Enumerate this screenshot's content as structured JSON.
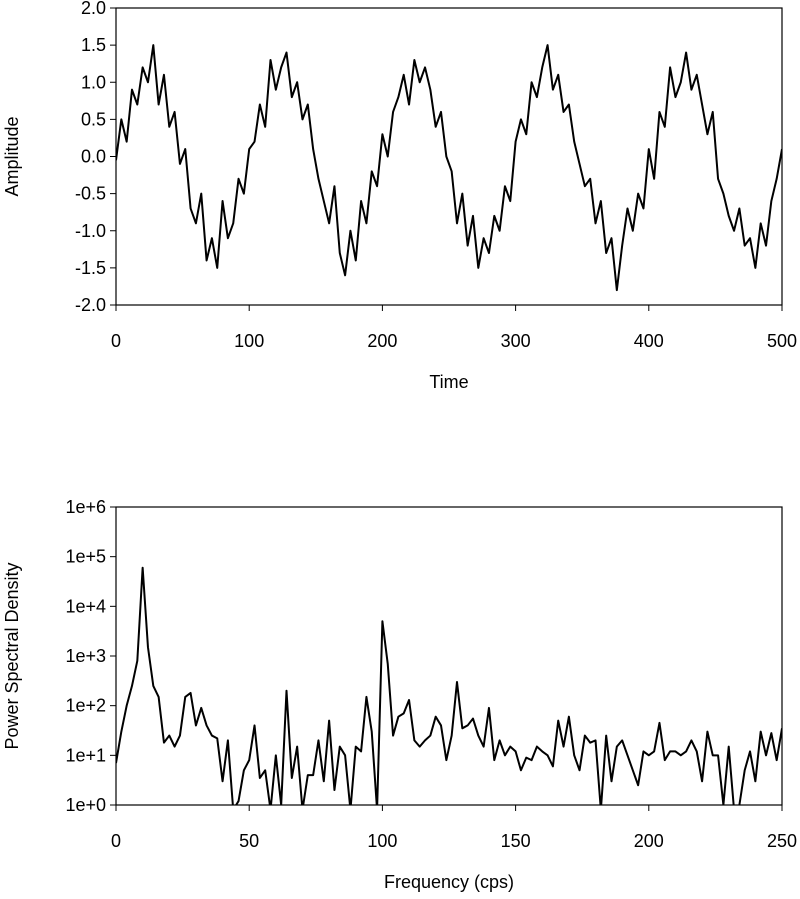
{
  "chart_data": [
    {
      "type": "line",
      "x_label": "Time",
      "y_label": "Amplitude",
      "color": "#000000",
      "xlim": [
        0,
        500
      ],
      "xticks": [
        0,
        100,
        200,
        300,
        400,
        500
      ],
      "ylim": [
        -2,
        2
      ],
      "yticks": [
        {
          "value": -2,
          "label": "-2.0"
        },
        -1.5,
        {
          "value": -1,
          "label": "-1.0"
        },
        -0.5,
        {
          "value": 0,
          "label": "0.0"
        },
        0.5,
        {
          "value": 1,
          "label": "1.0"
        },
        1.5,
        {
          "value": 2,
          "label": "2.0"
        }
      ],
      "x": [
        0,
        4,
        8,
        12,
        16,
        20,
        24,
        28,
        32,
        36,
        40,
        44,
        48,
        52,
        56,
        60,
        64,
        68,
        72,
        76,
        80,
        84,
        88,
        92,
        96,
        100,
        104,
        108,
        112,
        116,
        120,
        124,
        128,
        132,
        136,
        140,
        144,
        148,
        152,
        156,
        160,
        164,
        168,
        172,
        176,
        180,
        184,
        188,
        192,
        196,
        200,
        204,
        208,
        212,
        216,
        220,
        224,
        228,
        232,
        236,
        240,
        244,
        248,
        252,
        256,
        260,
        264,
        268,
        272,
        276,
        280,
        284,
        288,
        292,
        296,
        300,
        304,
        308,
        312,
        316,
        320,
        324,
        328,
        332,
        336,
        340,
        344,
        348,
        352,
        356,
        360,
        364,
        368,
        372,
        376,
        380,
        384,
        388,
        392,
        396,
        400,
        404,
        408,
        412,
        416,
        420,
        424,
        428,
        432,
        436,
        440,
        444,
        448,
        452,
        456,
        460,
        464,
        468,
        472,
        476,
        480,
        484,
        488,
        492,
        496,
        500
      ],
      "values": [
        -0.05,
        0.5,
        0.2,
        0.9,
        0.7,
        1.2,
        1.0,
        1.5,
        0.7,
        1.1,
        0.4,
        0.6,
        -0.1,
        0.1,
        -0.7,
        -0.9,
        -0.5,
        -1.4,
        -1.1,
        -1.5,
        -0.6,
        -1.1,
        -0.9,
        -0.3,
        -0.5,
        0.1,
        0.2,
        0.7,
        0.4,
        1.3,
        0.9,
        1.2,
        1.4,
        0.8,
        1.0,
        0.5,
        0.7,
        0.1,
        -0.3,
        -0.6,
        -0.9,
        -0.4,
        -1.3,
        -1.6,
        -1.0,
        -1.4,
        -0.6,
        -0.9,
        -0.2,
        -0.4,
        0.3,
        0.0,
        0.6,
        0.8,
        1.1,
        0.7,
        1.3,
        1.0,
        1.2,
        0.9,
        0.4,
        0.6,
        0.0,
        -0.2,
        -0.9,
        -0.5,
        -1.2,
        -0.8,
        -1.5,
        -1.1,
        -1.3,
        -0.8,
        -1.0,
        -0.4,
        -0.6,
        0.2,
        0.5,
        0.3,
        1.0,
        0.8,
        1.2,
        1.5,
        0.9,
        1.1,
        0.6,
        0.7,
        0.2,
        -0.1,
        -0.4,
        -0.3,
        -0.9,
        -0.6,
        -1.3,
        -1.1,
        -1.8,
        -1.2,
        -0.7,
        -1.0,
        -0.5,
        -0.7,
        0.1,
        -0.3,
        0.6,
        0.4,
        1.2,
        0.8,
        1.0,
        1.4,
        0.9,
        1.1,
        0.7,
        0.3,
        0.6,
        -0.3,
        -0.5,
        -0.8,
        -1.0,
        -0.7,
        -1.2,
        -1.1,
        -1.5,
        -0.9,
        -1.2,
        -0.6,
        -0.3,
        0.1
      ]
    },
    {
      "type": "line",
      "x_label": "Frequency (cps)",
      "y_label": "Power Spectral Density",
      "color": "#000000",
      "log_scale": true,
      "xlim": [
        0,
        250
      ],
      "xticks": [
        0,
        50,
        100,
        150,
        200,
        250
      ],
      "ylim": [
        1,
        1000000
      ],
      "yticks": [
        {
          "value": 1,
          "label": "1e+0"
        },
        {
          "value": 10,
          "label": "1e+1"
        },
        {
          "value": 100,
          "label": "1e+2"
        },
        {
          "value": 1000,
          "label": "1e+3"
        },
        {
          "value": 10000,
          "label": "1e+4"
        },
        {
          "value": 100000,
          "label": "1e+5"
        },
        {
          "value": 1000000,
          "label": "1e+6"
        }
      ],
      "x": [
        0,
        2,
        4,
        6,
        8,
        10,
        12,
        14,
        16,
        18,
        20,
        22,
        24,
        26,
        28,
        30,
        32,
        34,
        36,
        38,
        40,
        42,
        44,
        46,
        48,
        50,
        52,
        54,
        56,
        58,
        60,
        62,
        64,
        66,
        68,
        70,
        72,
        74,
        76,
        78,
        80,
        82,
        84,
        86,
        88,
        90,
        92,
        94,
        96,
        98,
        100,
        102,
        104,
        106,
        108,
        110,
        112,
        114,
        116,
        118,
        120,
        122,
        124,
        126,
        128,
        130,
        132,
        134,
        136,
        138,
        140,
        142,
        144,
        146,
        148,
        150,
        152,
        154,
        156,
        158,
        160,
        162,
        164,
        166,
        168,
        170,
        172,
        174,
        176,
        178,
        180,
        182,
        184,
        186,
        188,
        190,
        192,
        194,
        196,
        198,
        200,
        202,
        204,
        206,
        208,
        210,
        212,
        214,
        216,
        218,
        220,
        222,
        224,
        226,
        228,
        230,
        232,
        234,
        236,
        238,
        240,
        242,
        244,
        246,
        248,
        250
      ],
      "values": [
        7,
        30,
        100,
        250,
        800,
        60000,
        1500,
        250,
        150,
        18,
        25,
        15,
        25,
        150,
        180,
        40,
        90,
        40,
        25,
        22,
        3,
        20,
        0.8,
        1.2,
        5,
        8,
        40,
        3.5,
        5,
        0.8,
        10,
        1,
        200,
        3.5,
        15,
        0.8,
        4,
        4,
        20,
        3,
        50,
        2,
        15,
        10,
        0.8,
        15,
        12,
        150,
        30,
        0.8,
        5000,
        700,
        25,
        60,
        70,
        130,
        20,
        15,
        20,
        25,
        60,
        40,
        8,
        25,
        300,
        35,
        40,
        55,
        25,
        15,
        90,
        8,
        20,
        10,
        15,
        12,
        5,
        9,
        8,
        15,
        12,
        10,
        6,
        50,
        15,
        60,
        10,
        5,
        25,
        18,
        20,
        0.8,
        25,
        3,
        15,
        20,
        10,
        5,
        2.5,
        12,
        10,
        12,
        45,
        8,
        12,
        12,
        10,
        12,
        20,
        12,
        3,
        30,
        10,
        10,
        1,
        15,
        0.8,
        1,
        5,
        12,
        3,
        30,
        10,
        28,
        8,
        35
      ]
    }
  ]
}
